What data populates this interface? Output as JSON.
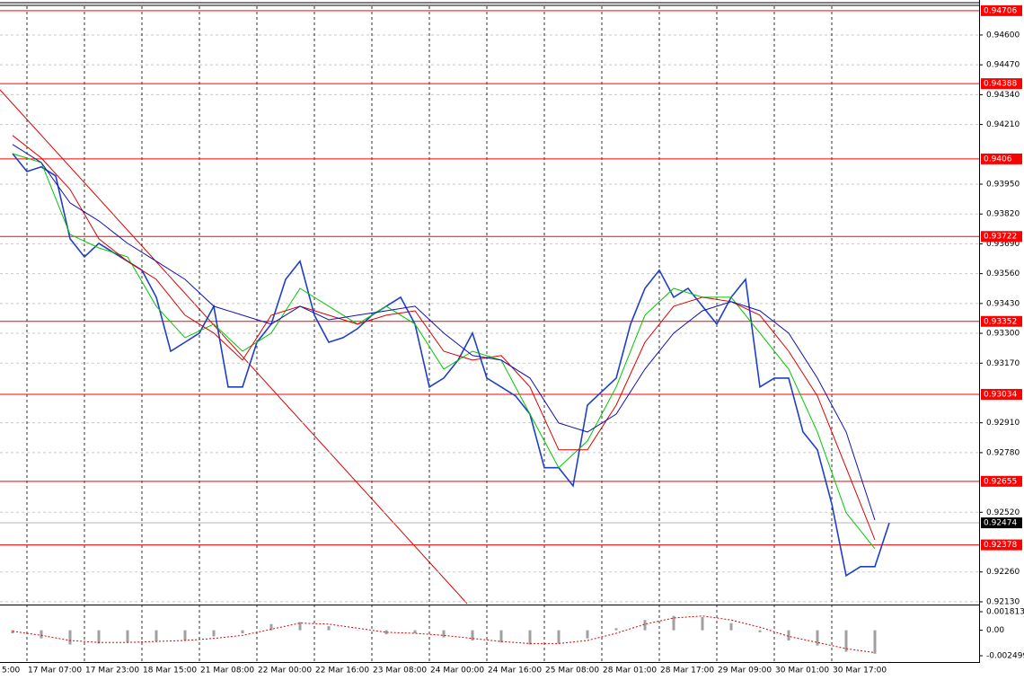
{
  "chart_data": [
    {
      "type": "price",
      "xlim": [
        -1.875,
        66.25
      ],
      "xticks": [
        {
          "value": -4,
          "label": "5:00"
        },
        {
          "value": 0,
          "label": "17 Mar 07:00"
        },
        {
          "value": 4,
          "label": "17 Mar 23:00"
        },
        {
          "value": 8,
          "label": "18 Mar 15:00"
        },
        {
          "value": 12,
          "label": "21 Mar 08:00"
        },
        {
          "value": 16,
          "label": "22 Mar 00:00"
        },
        {
          "value": 20,
          "label": "22 Mar 16:00"
        },
        {
          "value": 24,
          "label": "23 Mar 08:00"
        },
        {
          "value": 28,
          "label": "24 Mar 00:00"
        },
        {
          "value": 32,
          "label": "24 Mar 16:00"
        },
        {
          "value": 36,
          "label": "25 Mar 08:00"
        },
        {
          "value": 40,
          "label": "28 Mar 01:00"
        },
        {
          "value": 44,
          "label": "28 Mar 17:00"
        },
        {
          "value": 48,
          "label": "29 Mar 09:00"
        },
        {
          "value": 52,
          "label": "30 Mar 01:00"
        },
        {
          "value": 56,
          "label": "30 Mar 17:00"
        }
      ],
      "ylim": [
        0.92118,
        0.94729
      ],
      "yticks": [
        {
          "value": 0.946,
          "label": "0.94600"
        },
        {
          "value": 0.9447,
          "label": "0.94470"
        },
        {
          "value": 0.9434,
          "label": "0.94340"
        },
        {
          "value": 0.9421,
          "label": "0.94210"
        },
        {
          "value": 0.9395,
          "label": "0.93950"
        },
        {
          "value": 0.9382,
          "label": "0.93820"
        },
        {
          "value": 0.9369,
          "label": "0.93690"
        },
        {
          "value": 0.9356,
          "label": "0.93560"
        },
        {
          "value": 0.9343,
          "label": "0.93430"
        },
        {
          "value": 0.933,
          "label": "0.93300"
        },
        {
          "value": 0.9317,
          "label": "0.93170"
        },
        {
          "value": 0.9291,
          "label": "0.92910"
        },
        {
          "value": 0.9278,
          "label": "0.92780"
        },
        {
          "value": 0.9252,
          "label": "0.92520"
        },
        {
          "value": 0.9226,
          "label": "0.92260"
        },
        {
          "value": 0.9213,
          "label": "0.92130"
        }
      ],
      "grid": true,
      "levels": [
        0.94706,
        0.94388,
        0.9406,
        0.93722,
        0.93352,
        0.93034,
        0.92655,
        0.92378
      ],
      "level_color": "#ff0000",
      "current_price": 0.92474,
      "series": [
        {
          "color": "#1e3fc8",
          "width": 1.6,
          "x": [
            -1,
            0,
            1,
            2,
            3,
            4,
            5,
            6,
            7,
            8,
            9,
            10,
            11,
            12,
            13,
            14,
            15,
            16,
            17,
            18,
            19,
            20,
            21,
            22,
            23,
            24,
            25,
            26,
            27,
            28,
            29,
            30,
            31,
            32,
            33,
            34,
            35,
            36,
            37,
            38,
            39,
            40,
            41,
            42,
            43,
            44,
            45,
            46,
            47,
            48,
            49,
            50,
            51,
            52,
            53,
            54,
            55,
            56,
            57,
            58,
            59,
            60
          ],
          "values": [
            0.94083,
            0.94005,
            0.94025,
            0.93986,
            0.93712,
            0.93633,
            0.93692,
            0.93653,
            0.93614,
            0.93575,
            0.93457,
            0.93222,
            0.93261,
            0.93301,
            0.93418,
            0.93066,
            0.93066,
            0.93261,
            0.9334,
            0.93535,
            0.93614,
            0.93379,
            0.93261,
            0.93281,
            0.9332,
            0.93379,
            0.93418,
            0.93457,
            0.9334,
            0.93066,
            0.93105,
            0.93183,
            0.93301,
            0.93105,
            0.93066,
            0.93027,
            0.92948,
            0.92714,
            0.92714,
            0.92635,
            0.92987,
            0.93046,
            0.93105,
            0.9334,
            0.93496,
            0.93575,
            0.93457,
            0.93496,
            0.93418,
            0.9334,
            0.93457,
            0.93535,
            0.93066,
            0.93105,
            0.93105,
            0.9287,
            0.92792,
            0.92557,
            0.92244,
            0.92283,
            0.92283,
            0.92474
          ]
        },
        {
          "color": "#00c800",
          "width": 1,
          "x": [
            -1,
            1,
            3,
            5,
            7,
            9,
            11,
            13,
            15,
            17,
            19,
            21,
            23,
            25,
            27,
            29,
            31,
            33,
            35,
            37,
            39,
            41,
            43,
            45,
            47,
            49,
            51,
            53,
            55,
            57,
            59
          ],
          "values": [
            0.94083,
            0.94044,
            0.93731,
            0.93672,
            0.93633,
            0.93418,
            0.93281,
            0.9334,
            0.93222,
            0.93301,
            0.93496,
            0.93418,
            0.9334,
            0.93418,
            0.9334,
            0.93144,
            0.93222,
            0.93183,
            0.92948,
            0.92714,
            0.92831,
            0.93066,
            0.93379,
            0.93496,
            0.93457,
            0.93457,
            0.93301,
            0.93144,
            0.9287,
            0.92518,
            0.92361
          ]
        },
        {
          "color": "#dc0000",
          "width": 1,
          "x": [
            -1,
            1,
            3,
            5,
            7,
            9,
            11,
            13,
            15,
            17,
            19,
            21,
            23,
            25,
            27,
            29,
            31,
            33,
            35,
            37,
            39,
            41,
            43,
            45,
            47,
            49,
            51,
            53,
            55,
            57,
            59
          ],
          "values": [
            0.94162,
            0.94064,
            0.93927,
            0.93712,
            0.93614,
            0.93535,
            0.93379,
            0.93301,
            0.93183,
            0.93379,
            0.93418,
            0.93379,
            0.9334,
            0.93379,
            0.93398,
            0.93222,
            0.93183,
            0.93203,
            0.93066,
            0.92792,
            0.92792,
            0.92987,
            0.93261,
            0.93418,
            0.93457,
            0.93438,
            0.93379,
            0.93222,
            0.93027,
            0.92714,
            0.924
          ]
        },
        {
          "color": "#1010b4",
          "width": 1,
          "x": [
            -1,
            1,
            3,
            5,
            7,
            9,
            11,
            13,
            15,
            17,
            19,
            21,
            23,
            25,
            27,
            29,
            31,
            33,
            35,
            37,
            39,
            41,
            43,
            45,
            47,
            49,
            51,
            53,
            55,
            57,
            59
          ],
          "values": [
            0.94123,
            0.94044,
            0.93868,
            0.9379,
            0.93692,
            0.93614,
            0.93535,
            0.93418,
            0.93379,
            0.9334,
            0.93418,
            0.93359,
            0.93379,
            0.93398,
            0.93418,
            0.93301,
            0.93203,
            0.93183,
            0.93105,
            0.92909,
            0.9287,
            0.92948,
            0.93144,
            0.93301,
            0.93398,
            0.93438,
            0.93398,
            0.93301,
            0.93105,
            0.9287,
            0.92486
          ]
        }
      ]
    },
    {
      "type": "macd",
      "ylim": [
        -0.003115,
        0.002429
      ],
      "yticks": [
        0.001813,
        {
          "value": 0,
          "label": "0.00"
        },
        -0.002499
      ],
      "x": [
        -1,
        1,
        3,
        5,
        7,
        9,
        11,
        13,
        15,
        17,
        19,
        21,
        23,
        25,
        27,
        29,
        31,
        33,
        35,
        37,
        39,
        41,
        43,
        45,
        47,
        49,
        51,
        53,
        55,
        57,
        59
      ],
      "histogram": {
        "color": "#a0a0a0",
        "values": [
          -0.0003,
          -0.0008,
          -0.0014,
          -0.0013,
          -0.0012,
          -0.0011,
          -0.001,
          -0.0006,
          -0.0003,
          0.0006,
          0.0008,
          0.0004,
          0,
          -0.0004,
          -0.0003,
          -0.0007,
          -0.001,
          -0.0012,
          -0.0014,
          -0.0013,
          -0.0008,
          0.0002,
          0.001,
          0.0014,
          0.0013,
          0.0007,
          -0.0002,
          -0.001,
          -0.0015,
          -0.0021,
          -0.0023
        ]
      },
      "signal": {
        "color": "#dc0000",
        "values": [
          -0.0001,
          -0.0005,
          -0.001,
          -0.0012,
          -0.0012,
          -0.0011,
          -0.001,
          -0.0008,
          -0.0005,
          0.0001,
          0.0007,
          0.0006,
          0.0002,
          -0.0002,
          -0.0003,
          -0.0005,
          -0.0008,
          -0.0011,
          -0.0013,
          -0.0013,
          -0.001,
          -0.0003,
          0.0006,
          0.0012,
          0.0014,
          0.001,
          0.0003,
          -0.0006,
          -0.0012,
          -0.0018,
          -0.0022
        ]
      }
    }
  ]
}
